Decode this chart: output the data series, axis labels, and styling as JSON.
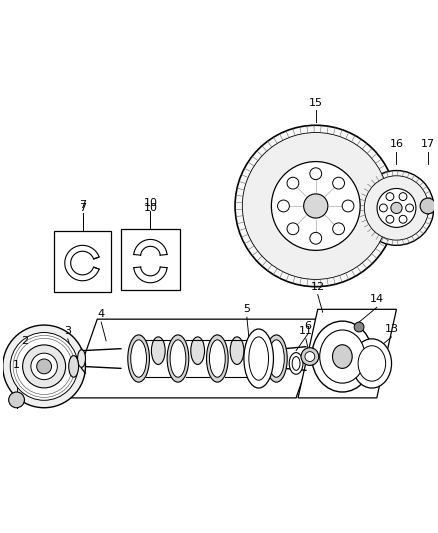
{
  "bg": "#ffffff",
  "lc": "#000000",
  "fig_w": 4.38,
  "fig_h": 5.33,
  "dpi": 100
}
